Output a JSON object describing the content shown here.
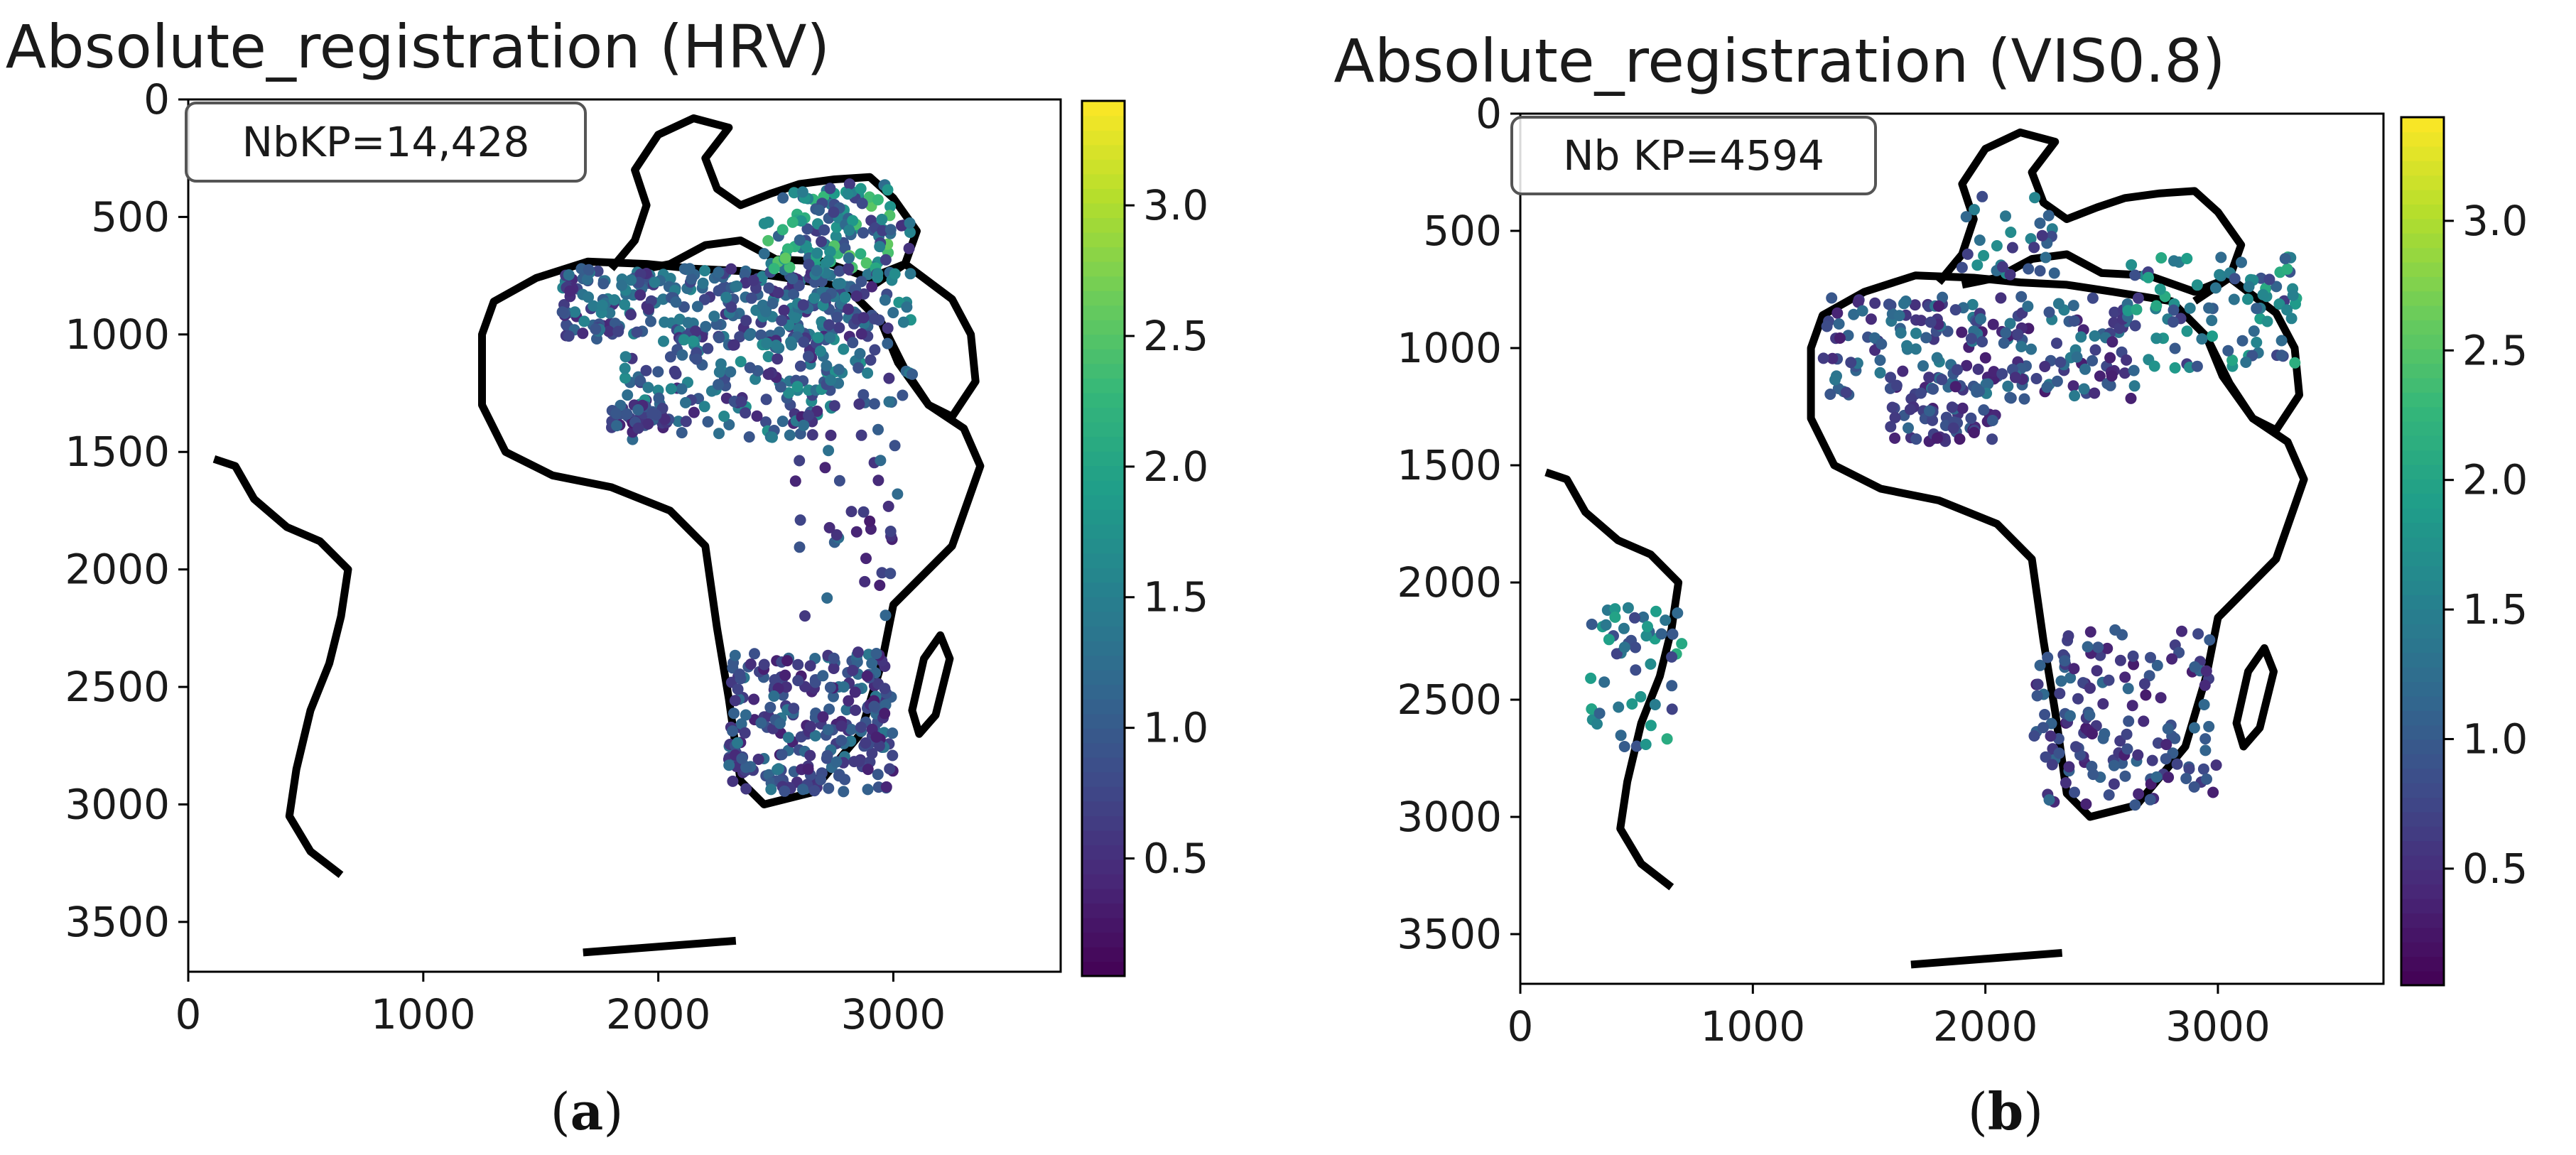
{
  "figure": {
    "panels": [
      {
        "id": "a",
        "label_open": "(",
        "label_letter": "a",
        "label_close": ")"
      },
      {
        "id": "b",
        "label_open": "(",
        "label_letter": "b",
        "label_close": ")"
      }
    ]
  },
  "colors": {
    "colormap": "viridis",
    "coastline": "#000000",
    "axes": "#000000"
  },
  "chart_data": [
    {
      "type": "scatter",
      "title": "Absolute_registration (HRV)",
      "annotation": "NbKP=14,428",
      "xlim": [
        0,
        3712
      ],
      "ylim": [
        3712,
        0
      ],
      "y_inverted": true,
      "xticks": [
        0,
        1000,
        2000,
        3000
      ],
      "yticks": [
        0,
        500,
        1000,
        1500,
        2000,
        2500,
        3000,
        3500
      ],
      "colorbar": {
        "range": [
          0.05,
          3.4
        ],
        "ticks": [
          0.5,
          1.0,
          1.5,
          2.0,
          2.5,
          3.0
        ],
        "tick_labels": [
          "0.5",
          "1.0",
          "1.5",
          "2.0",
          "2.5",
          "3.0"
        ]
      },
      "clusters": [
        {
          "x": [
            1580,
            3000
          ],
          "y": [
            720,
            1020
          ],
          "n": 300,
          "c": [
            0.4,
            1.6
          ]
        },
        {
          "x": [
            1850,
            2750
          ],
          "y": [
            1000,
            1450
          ],
          "n": 160,
          "c": [
            0.4,
            1.8
          ]
        },
        {
          "x": [
            1800,
            2050
          ],
          "y": [
            1300,
            1400
          ],
          "n": 40,
          "c": [
            0.3,
            1.2
          ]
        },
        {
          "x": [
            2450,
            2990
          ],
          "y": [
            360,
            720
          ],
          "n": 110,
          "c": [
            0.6,
            2.6
          ]
        },
        {
          "x": [
            2650,
            3100
          ],
          "y": [
            500,
            1300
          ],
          "n": 70,
          "c": [
            0.5,
            1.8
          ]
        },
        {
          "x": [
            2300,
            3000
          ],
          "y": [
            2350,
            2950
          ],
          "n": 260,
          "c": [
            0.3,
            1.4
          ]
        },
        {
          "x": [
            2550,
            3050
          ],
          "y": [
            1300,
            2250
          ],
          "n": 40,
          "c": [
            0.3,
            1.3
          ]
        }
      ]
    },
    {
      "type": "scatter",
      "title": "Absolute_registration (VIS0.8)",
      "annotation": "Nb KP=4594",
      "xlim": [
        0,
        3712
      ],
      "ylim": [
        3712,
        0
      ],
      "y_inverted": true,
      "xticks": [
        0,
        1000,
        2000,
        3000
      ],
      "yticks": [
        0,
        500,
        1000,
        1500,
        2000,
        2500,
        3000,
        3500
      ],
      "colorbar": {
        "range": [
          0.05,
          3.4
        ],
        "ticks": [
          0.5,
          1.0,
          1.5,
          2.0,
          2.5,
          3.0
        ],
        "tick_labels": [
          "0.5",
          "1.0",
          "1.5",
          "2.0",
          "2.5",
          "3.0"
        ]
      },
      "clusters": [
        {
          "x": [
            1300,
            2650
          ],
          "y": [
            780,
            1220
          ],
          "n": 220,
          "c": [
            0.3,
            1.5
          ]
        },
        {
          "x": [
            1550,
            2050
          ],
          "y": [
            1250,
            1400
          ],
          "n": 50,
          "c": [
            0.3,
            1.2
          ]
        },
        {
          "x": [
            2600,
            3350
          ],
          "y": [
            600,
            1100
          ],
          "n": 90,
          "c": [
            0.6,
            2.2
          ]
        },
        {
          "x": [
            2200,
            3000
          ],
          "y": [
            2200,
            2950
          ],
          "n": 150,
          "c": [
            0.3,
            1.2
          ]
        },
        {
          "x": [
            300,
            700
          ],
          "y": [
            2100,
            2700
          ],
          "n": 50,
          "c": [
            0.7,
            2.3
          ]
        },
        {
          "x": [
            1900,
            2300
          ],
          "y": [
            350,
            700
          ],
          "n": 30,
          "c": [
            0.5,
            1.8
          ]
        }
      ]
    }
  ]
}
